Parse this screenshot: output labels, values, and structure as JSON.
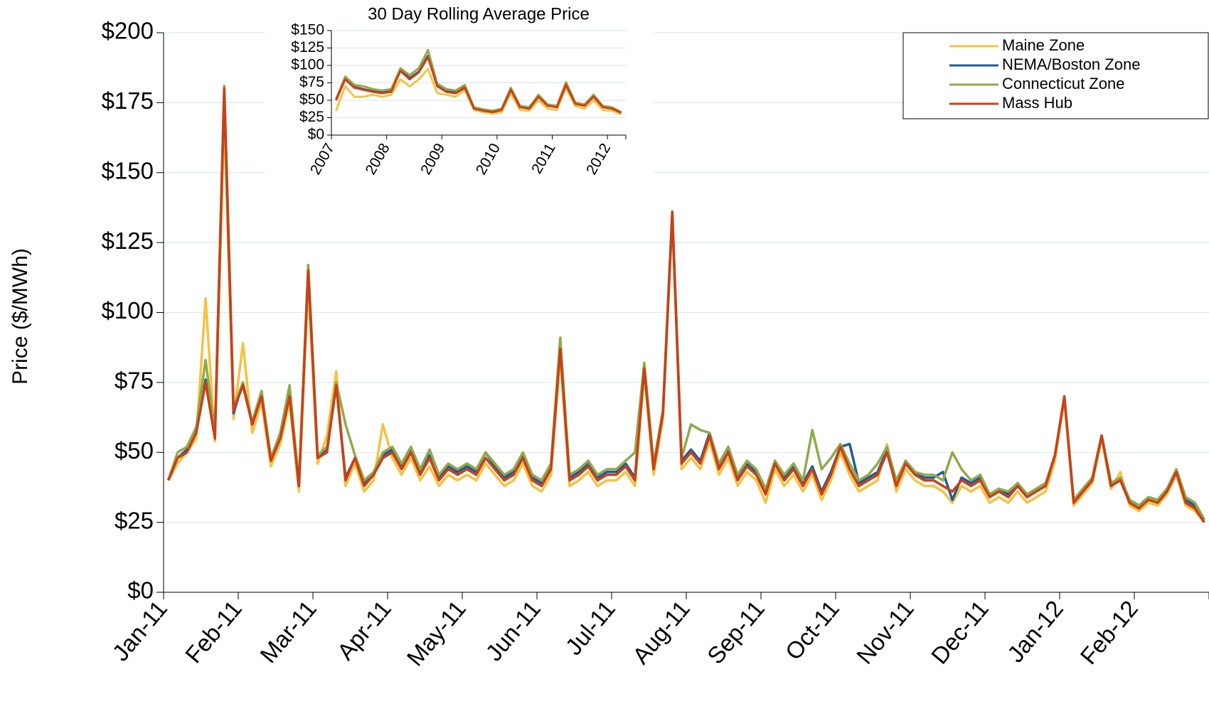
{
  "chart_data": [
    {
      "type": "line",
      "y_label": "Price ($/MWh)",
      "grid": true,
      "legend": "top-right",
      "categories": [
        "Jan-11",
        null,
        null,
        null,
        null,
        null,
        null,
        null,
        "Feb-11",
        null,
        null,
        null,
        null,
        null,
        null,
        null,
        "Mar-11",
        null,
        null,
        null,
        null,
        null,
        null,
        null,
        "Apr-11",
        null,
        null,
        null,
        null,
        null,
        null,
        null,
        "May-11",
        null,
        null,
        null,
        null,
        null,
        null,
        null,
        "Jun-11",
        null,
        null,
        null,
        null,
        null,
        null,
        null,
        "Jul-11",
        null,
        null,
        null,
        null,
        null,
        null,
        null,
        "Aug-11",
        null,
        null,
        null,
        null,
        null,
        null,
        null,
        "Sep-11",
        null,
        null,
        null,
        null,
        null,
        null,
        null,
        "Oct-11",
        null,
        null,
        null,
        null,
        null,
        null,
        null,
        "Nov-11",
        null,
        null,
        null,
        null,
        null,
        null,
        null,
        "Dec-11",
        null,
        null,
        null,
        null,
        null,
        null,
        null,
        "Jan-12",
        null,
        null,
        null,
        null,
        null,
        null,
        null,
        "Feb-12",
        null,
        null,
        null,
        null,
        null,
        null,
        null
      ],
      "ylim": [
        0,
        200
      ],
      "yticks": [
        {
          "value": 0,
          "label": "$0"
        },
        {
          "value": 25,
          "label": "$25"
        },
        {
          "value": 50,
          "label": "$50"
        },
        {
          "value": 75,
          "label": "$75"
        },
        {
          "value": 100,
          "label": "$100"
        },
        {
          "value": 125,
          "label": "$125"
        },
        {
          "value": 150,
          "label": "$150"
        },
        {
          "value": 175,
          "label": "$175"
        },
        {
          "value": 200,
          "label": "$200"
        }
      ],
      "series": [
        {
          "name": "Maine Zone",
          "color": "#f5c242",
          "values": [
            40,
            46,
            50,
            55,
            105,
            54,
            170,
            62,
            89,
            57,
            68,
            45,
            53,
            68,
            36,
            110,
            46,
            56,
            79,
            38,
            46,
            36,
            40,
            60,
            48,
            42,
            48,
            40,
            45,
            38,
            42,
            40,
            42,
            40,
            46,
            42,
            38,
            40,
            46,
            38,
            36,
            42,
            84,
            38,
            40,
            43,
            38,
            40,
            40,
            43,
            38,
            78,
            42,
            62,
            134,
            44,
            48,
            44,
            54,
            42,
            48,
            38,
            43,
            40,
            32,
            44,
            38,
            42,
            36,
            42,
            33,
            40,
            50,
            42,
            36,
            38,
            40,
            53,
            36,
            44,
            40,
            38,
            38,
            36,
            32,
            38,
            36,
            38,
            32,
            34,
            32,
            36,
            32,
            34,
            36,
            47,
            69,
            31,
            35,
            39,
            55,
            37,
            43,
            31,
            29,
            32,
            31,
            35,
            42,
            31,
            29,
            25
          ]
        },
        {
          "name": "NEMA/Boston Zone",
          "color": "#1f5c99",
          "values": [
            40,
            48,
            51,
            58,
            76,
            56,
            179,
            64,
            75,
            60,
            71,
            48,
            56,
            71,
            38,
            116,
            49,
            51,
            74,
            41,
            48,
            39,
            42,
            49,
            51,
            45,
            51,
            43,
            49,
            41,
            45,
            43,
            45,
            43,
            50,
            45,
            41,
            43,
            49,
            41,
            39,
            45,
            88,
            41,
            43,
            46,
            41,
            43,
            43,
            46,
            41,
            81,
            45,
            65,
            135,
            47,
            51,
            47,
            57,
            45,
            51,
            41,
            46,
            43,
            36,
            47,
            41,
            45,
            39,
            45,
            36,
            43,
            52,
            53,
            39,
            41,
            43,
            51,
            39,
            47,
            43,
            41,
            41,
            43,
            33,
            41,
            39,
            41,
            35,
            37,
            35,
            39,
            35,
            37,
            39,
            49,
            70,
            33,
            37,
            41,
            56,
            39,
            41,
            33,
            31,
            34,
            33,
            37,
            43,
            33,
            31,
            26
          ]
        },
        {
          "name": "Connecticut Zone",
          "color": "#8faa4b",
          "values": [
            40,
            50,
            52,
            59,
            83,
            57,
            181,
            66,
            75,
            61,
            72,
            48,
            57,
            74,
            39,
            117,
            49,
            52,
            75,
            60,
            49,
            40,
            43,
            50,
            52,
            46,
            52,
            44,
            51,
            42,
            46,
            44,
            46,
            44,
            50,
            46,
            42,
            44,
            50,
            42,
            40,
            46,
            91,
            42,
            44,
            47,
            42,
            44,
            44,
            47,
            50,
            82,
            46,
            65,
            136,
            48,
            60,
            58,
            57,
            46,
            52,
            42,
            47,
            44,
            37,
            47,
            42,
            46,
            40,
            58,
            44,
            48,
            53,
            46,
            40,
            42,
            46,
            52,
            40,
            47,
            43,
            42,
            42,
            40,
            50,
            44,
            40,
            42,
            35,
            37,
            36,
            39,
            35,
            37,
            39,
            49,
            70,
            33,
            37,
            41,
            56,
            39,
            41,
            33,
            31,
            34,
            33,
            37,
            44,
            34,
            32,
            26
          ]
        },
        {
          "name": "Mass Hub",
          "color": "#c9401a",
          "values": [
            40,
            48,
            50,
            57,
            75,
            55,
            180,
            65,
            74,
            60,
            70,
            47,
            55,
            70,
            38,
            115,
            48,
            50,
            74,
            40,
            48,
            38,
            42,
            48,
            50,
            44,
            50,
            42,
            48,
            40,
            44,
            42,
            44,
            42,
            48,
            44,
            40,
            42,
            48,
            40,
            38,
            44,
            87,
            40,
            42,
            45,
            40,
            42,
            42,
            45,
            40,
            80,
            44,
            64,
            136,
            46,
            50,
            46,
            56,
            44,
            50,
            40,
            45,
            42,
            35,
            46,
            40,
            44,
            38,
            44,
            35,
            42,
            52,
            44,
            38,
            40,
            42,
            50,
            38,
            46,
            42,
            40,
            40,
            38,
            36,
            40,
            38,
            40,
            34,
            36,
            34,
            38,
            34,
            36,
            38,
            49,
            70,
            32,
            36,
            40,
            56,
            38,
            40,
            32,
            30,
            33,
            32,
            36,
            43,
            32,
            30,
            25
          ]
        }
      ]
    },
    {
      "type": "line",
      "title": "30 Day Rolling Average Price",
      "grid": true,
      "categories": [
        "2007",
        null,
        null,
        null,
        null,
        null,
        "2008",
        null,
        null,
        null,
        null,
        null,
        "2009",
        null,
        null,
        null,
        null,
        null,
        "2010",
        null,
        null,
        null,
        null,
        null,
        "2011",
        null,
        null,
        null,
        null,
        null,
        "2012",
        null
      ],
      "ylim": [
        0,
        150
      ],
      "yticks": [
        {
          "value": 0,
          "label": "$0"
        },
        {
          "value": 25,
          "label": "$25"
        },
        {
          "value": 50,
          "label": "$50"
        },
        {
          "value": 75,
          "label": "$75"
        },
        {
          "value": 100,
          "label": "$100"
        },
        {
          "value": 125,
          "label": "$125"
        },
        {
          "value": 150,
          "label": "$150"
        }
      ],
      "series": [
        {
          "color": "#f5c242",
          "values": [
            35,
            70,
            55,
            55,
            58,
            55,
            58,
            80,
            70,
            80,
            95,
            60,
            58,
            55,
            65,
            36,
            33,
            31,
            33,
            60,
            36,
            35,
            50,
            38,
            36,
            68,
            42,
            38,
            50,
            36,
            35,
            30
          ]
        },
        {
          "color": "#1f5c99",
          "values": [
            50,
            81,
            69,
            66,
            63,
            61,
            63,
            93,
            82,
            91,
            114,
            71,
            63,
            61,
            69,
            39,
            36,
            34,
            37,
            66,
            41,
            39,
            56,
            43,
            41,
            73,
            46,
            43,
            56,
            41,
            39,
            32
          ]
        },
        {
          "color": "#8faa4b",
          "values": [
            52,
            84,
            72,
            70,
            66,
            64,
            66,
            96,
            86,
            96,
            122,
            74,
            66,
            64,
            72,
            40,
            37,
            35,
            38,
            68,
            42,
            40,
            58,
            44,
            42,
            76,
            47,
            44,
            58,
            42,
            40,
            33
          ]
        },
        {
          "color": "#c9401a",
          "values": [
            50,
            80,
            68,
            65,
            62,
            60,
            62,
            92,
            80,
            90,
            112,
            70,
            62,
            60,
            68,
            38,
            35,
            33,
            36,
            65,
            40,
            38,
            55,
            42,
            40,
            72,
            45,
            42,
            55,
            40,
            38,
            32
          ]
        }
      ]
    }
  ]
}
